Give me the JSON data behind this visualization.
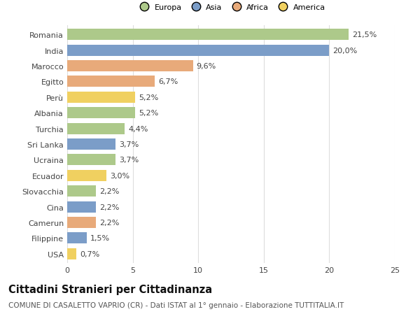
{
  "labels": [
    "Romania",
    "India",
    "Marocco",
    "Egitto",
    "Perù",
    "Albania",
    "Turchia",
    "Sri Lanka",
    "Ucraina",
    "Ecuador",
    "Slovacchia",
    "Cina",
    "Camerun",
    "Filippine",
    "USA"
  ],
  "values": [
    21.5,
    20.0,
    9.6,
    6.7,
    5.2,
    5.2,
    4.4,
    3.7,
    3.7,
    3.0,
    2.2,
    2.2,
    2.2,
    1.5,
    0.7
  ],
  "continents": [
    "Europa",
    "Asia",
    "Africa",
    "Africa",
    "America",
    "Europa",
    "Europa",
    "Asia",
    "Europa",
    "America",
    "Europa",
    "Asia",
    "Africa",
    "Asia",
    "America"
  ],
  "continent_colors": {
    "Europa": "#adc98a",
    "Asia": "#7b9dc8",
    "Africa": "#e8aa7a",
    "America": "#f0d060"
  },
  "bar_labels": [
    "21,5%",
    "20,0%",
    "9,6%",
    "6,7%",
    "5,2%",
    "5,2%",
    "4,4%",
    "3,7%",
    "3,7%",
    "3,0%",
    "2,2%",
    "2,2%",
    "2,2%",
    "1,5%",
    "0,7%"
  ],
  "xlim": [
    0,
    25
  ],
  "xticks": [
    0,
    5,
    10,
    15,
    20,
    25
  ],
  "title": "Cittadini Stranieri per Cittadinanza",
  "subtitle": "COMUNE DI CASALETTO VAPRIO (CR) - Dati ISTAT al 1° gennaio - Elaborazione TUTTITALIA.IT",
  "legend_order": [
    "Europa",
    "Asia",
    "Africa",
    "America"
  ],
  "background_color": "#ffffff",
  "grid_color": "#dddddd",
  "bar_height": 0.72,
  "label_fontsize": 8.0,
  "title_fontsize": 10.5,
  "subtitle_fontsize": 7.5
}
